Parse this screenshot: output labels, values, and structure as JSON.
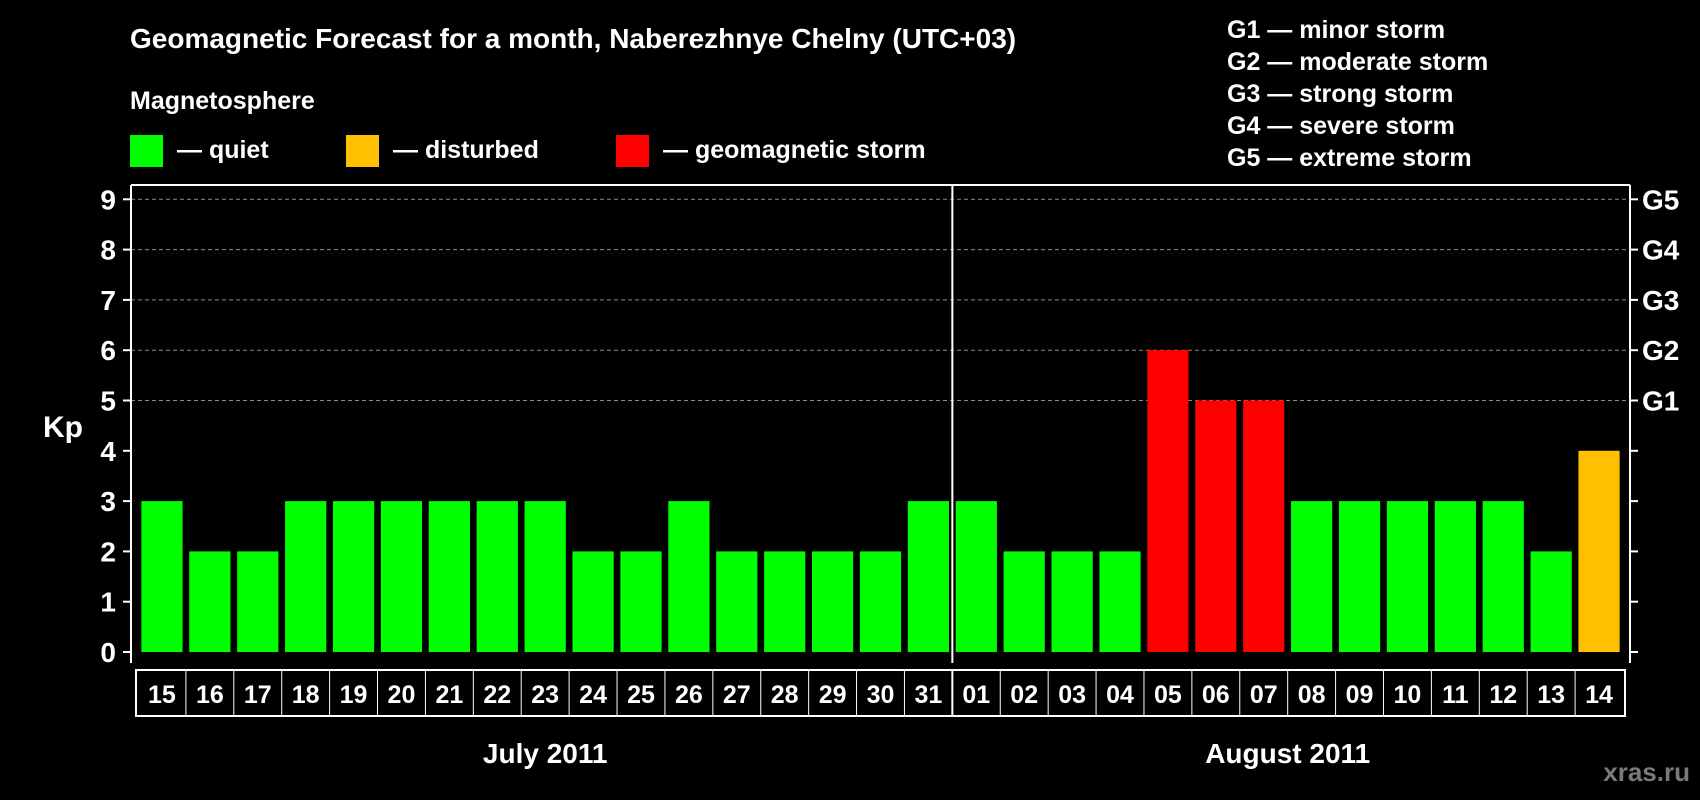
{
  "chart_data": {
    "type": "bar",
    "title": "Geomagnetic Forecast for a month, Naberezhnye Chelny (UTC+03)",
    "ylabel": "Kp",
    "ylim": [
      0,
      9
    ],
    "yticks": [
      "0",
      "1",
      "2",
      "3",
      "4",
      "5",
      "6",
      "7",
      "8",
      "9"
    ],
    "gridlines_at": [
      5,
      6,
      7,
      8,
      9
    ],
    "storm_levels": [
      {
        "label": "G1",
        "kp": 5
      },
      {
        "label": "G2",
        "kp": 6
      },
      {
        "label": "G3",
        "kp": 7
      },
      {
        "label": "G4",
        "kp": 8
      },
      {
        "label": "G5",
        "kp": 9
      }
    ],
    "legend": {
      "title": "Magnetosphere",
      "items": [
        {
          "label": "— quiet",
          "color": "#00ff00"
        },
        {
          "label": "— disturbed",
          "color": "#ffc000"
        },
        {
          "label": "— geomagnetic storm",
          "color": "#ff0000"
        }
      ]
    },
    "storm_scale": [
      "G1 — minor storm",
      "G2 — moderate storm",
      "G3 — strong storm",
      "G4 — severe storm",
      "G5 — extreme storm"
    ],
    "months": [
      {
        "label": "July 2011",
        "start_index": 0,
        "end_index": 16
      },
      {
        "label": "August 2011",
        "start_index": 17,
        "end_index": 30
      }
    ],
    "categories": [
      "15",
      "16",
      "17",
      "18",
      "19",
      "20",
      "21",
      "22",
      "23",
      "24",
      "25",
      "26",
      "27",
      "28",
      "29",
      "30",
      "31",
      "01",
      "02",
      "03",
      "04",
      "05",
      "06",
      "07",
      "08",
      "09",
      "10",
      "11",
      "12",
      "13",
      "14"
    ],
    "values": [
      3,
      2,
      2,
      3,
      3,
      3,
      3,
      3,
      3,
      2,
      2,
      3,
      2,
      2,
      2,
      2,
      3,
      3,
      2,
      2,
      2,
      6,
      5,
      5,
      3,
      3,
      3,
      3,
      3,
      2,
      4
    ],
    "colors": {
      "quiet": "#00ff00",
      "disturbed": "#ffc000",
      "storm": "#ff0000"
    }
  },
  "watermark": "xras.ru"
}
